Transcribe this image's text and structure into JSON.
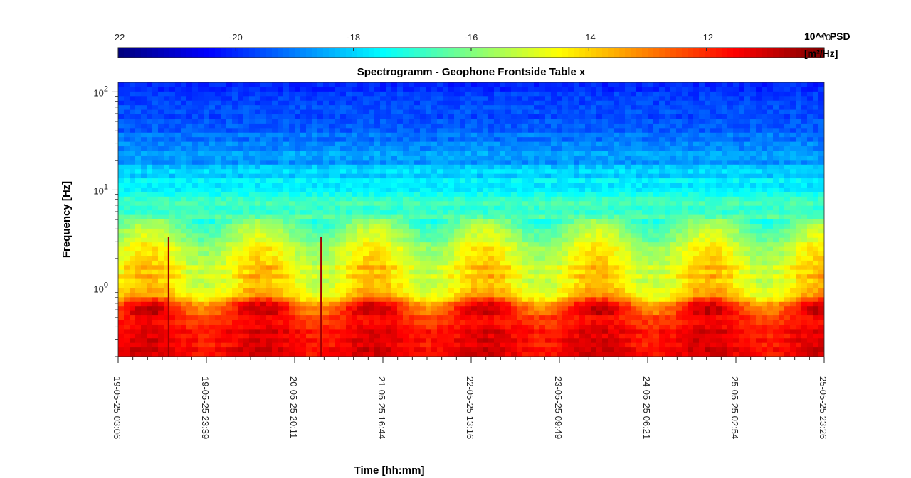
{
  "chart_data": {
    "type": "heatmap",
    "title": "Spectrogramm - Geophone Frontside Table x",
    "xlabel": "Time [hh:mm]",
    "ylabel": "Frequency [Hz]",
    "y_scale": "log",
    "ylim": [
      0.2,
      125
    ],
    "y_ticks": [
      {
        "value": 1,
        "base": "10",
        "exp": "0"
      },
      {
        "value": 10,
        "base": "10",
        "exp": "1"
      },
      {
        "value": 100,
        "base": "10",
        "exp": "2"
      }
    ],
    "x_tick_labels": [
      "19-05-25 03:06",
      "19-05-25 23:39",
      "20-05-25 20:11",
      "21-05-25 16:44",
      "22-05-25 13:16",
      "23-05-25 09:49",
      "24-05-25 06:21",
      "25-05-25 02:54",
      "25-05-25 23:26"
    ],
    "colorbar": {
      "colormap": "jet",
      "range": [
        -22,
        -10
      ],
      "tick_labels": [
        "-22",
        "-20",
        "-18",
        "-16",
        "-14",
        "-12",
        "-10"
      ],
      "label_line1": "10^^ PSD",
      "label_line2": "[m²/Hz]"
    },
    "psd_profile_by_frequency": [
      {
        "freq_hz": 0.2,
        "log10_psd": -11.3
      },
      {
        "freq_hz": 0.5,
        "log10_psd": -11.6
      },
      {
        "freq_hz": 0.7,
        "log10_psd": -12.6
      },
      {
        "freq_hz": 0.9,
        "log10_psd": -14.2
      },
      {
        "freq_hz": 2,
        "log10_psd": -14.6
      },
      {
        "freq_hz": 5,
        "log10_psd": -16.4
      },
      {
        "freq_hz": 10,
        "log10_psd": -17.4
      },
      {
        "freq_hz": 20,
        "log10_psd": -18.6
      },
      {
        "freq_hz": 125,
        "log10_psd": -20.2
      }
    ],
    "transient_events": [
      "19-05-25 16:00",
      "20-05-25 23:00"
    ],
    "grid": false
  }
}
